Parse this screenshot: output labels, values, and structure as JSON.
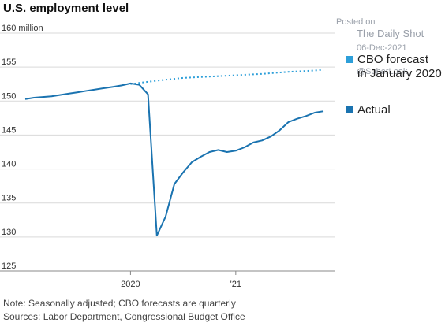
{
  "title": "U.S. employment level",
  "watermark": {
    "line1": "Posted on",
    "line2": "The Daily Shot",
    "line3": "06-Dec-2021",
    "line4": "@SoberLook"
  },
  "notes": {
    "note1": "Note: Seasonally adjusted; CBO forecasts are quarterly",
    "note2": "Sources: Labor Department, Congressional Budget Office"
  },
  "colors": {
    "actual": "#1a73b0",
    "forecast": "#2d9fd9",
    "grid": "#d9d9d9"
  },
  "chart_data": {
    "type": "line",
    "title": "U.S. employment level",
    "ylim": [
      125,
      160
    ],
    "y_ticks": [
      {
        "value": 160,
        "label": "160 million"
      },
      {
        "value": 155,
        "label": "155"
      },
      {
        "value": 150,
        "label": "150"
      },
      {
        "value": 145,
        "label": "145"
      },
      {
        "value": 140,
        "label": "140"
      },
      {
        "value": 135,
        "label": "135"
      },
      {
        "value": 130,
        "label": "130"
      },
      {
        "value": 125,
        "label": "125"
      }
    ],
    "x_ticks": [
      {
        "value": "2020-01",
        "label": "2020"
      },
      {
        "value": "2021-01",
        "label": "'21"
      }
    ],
    "grid": true,
    "legend_position": "right",
    "series": [
      {
        "name": "CBO forecast in January 2020",
        "style": "dotted",
        "points": [
          [
            "2020-01",
            152.5
          ],
          [
            "2020-04",
            153.0
          ],
          [
            "2020-07",
            153.4
          ],
          [
            "2020-10",
            153.6
          ],
          [
            "2021-01",
            153.8
          ],
          [
            "2021-04",
            154.0
          ],
          [
            "2021-07",
            154.3
          ],
          [
            "2021-10",
            154.5
          ],
          [
            "2021-11",
            154.6
          ]
        ]
      },
      {
        "name": "Actual",
        "style": "solid",
        "points": [
          [
            "2019-01",
            150.3
          ],
          [
            "2019-02",
            150.5
          ],
          [
            "2019-03",
            150.6
          ],
          [
            "2019-04",
            150.7
          ],
          [
            "2019-05",
            150.9
          ],
          [
            "2019-06",
            151.1
          ],
          [
            "2019-07",
            151.3
          ],
          [
            "2019-08",
            151.5
          ],
          [
            "2019-09",
            151.7
          ],
          [
            "2019-10",
            151.9
          ],
          [
            "2019-11",
            152.1
          ],
          [
            "2019-12",
            152.3
          ],
          [
            "2020-01",
            152.6
          ],
          [
            "2020-02",
            152.4
          ],
          [
            "2020-03",
            151.0
          ],
          [
            "2020-04",
            130.2
          ],
          [
            "2020-05",
            133.0
          ],
          [
            "2020-06",
            137.8
          ],
          [
            "2020-07",
            139.5
          ],
          [
            "2020-08",
            141.0
          ],
          [
            "2020-09",
            141.8
          ],
          [
            "2020-10",
            142.5
          ],
          [
            "2020-11",
            142.8
          ],
          [
            "2020-12",
            142.5
          ],
          [
            "2021-01",
            142.7
          ],
          [
            "2021-02",
            143.2
          ],
          [
            "2021-03",
            143.9
          ],
          [
            "2021-04",
            144.2
          ],
          [
            "2021-05",
            144.8
          ],
          [
            "2021-06",
            145.7
          ],
          [
            "2021-07",
            146.9
          ],
          [
            "2021-08",
            147.4
          ],
          [
            "2021-09",
            147.8
          ],
          [
            "2021-10",
            148.3
          ],
          [
            "2021-11",
            148.5
          ]
        ]
      }
    ]
  }
}
